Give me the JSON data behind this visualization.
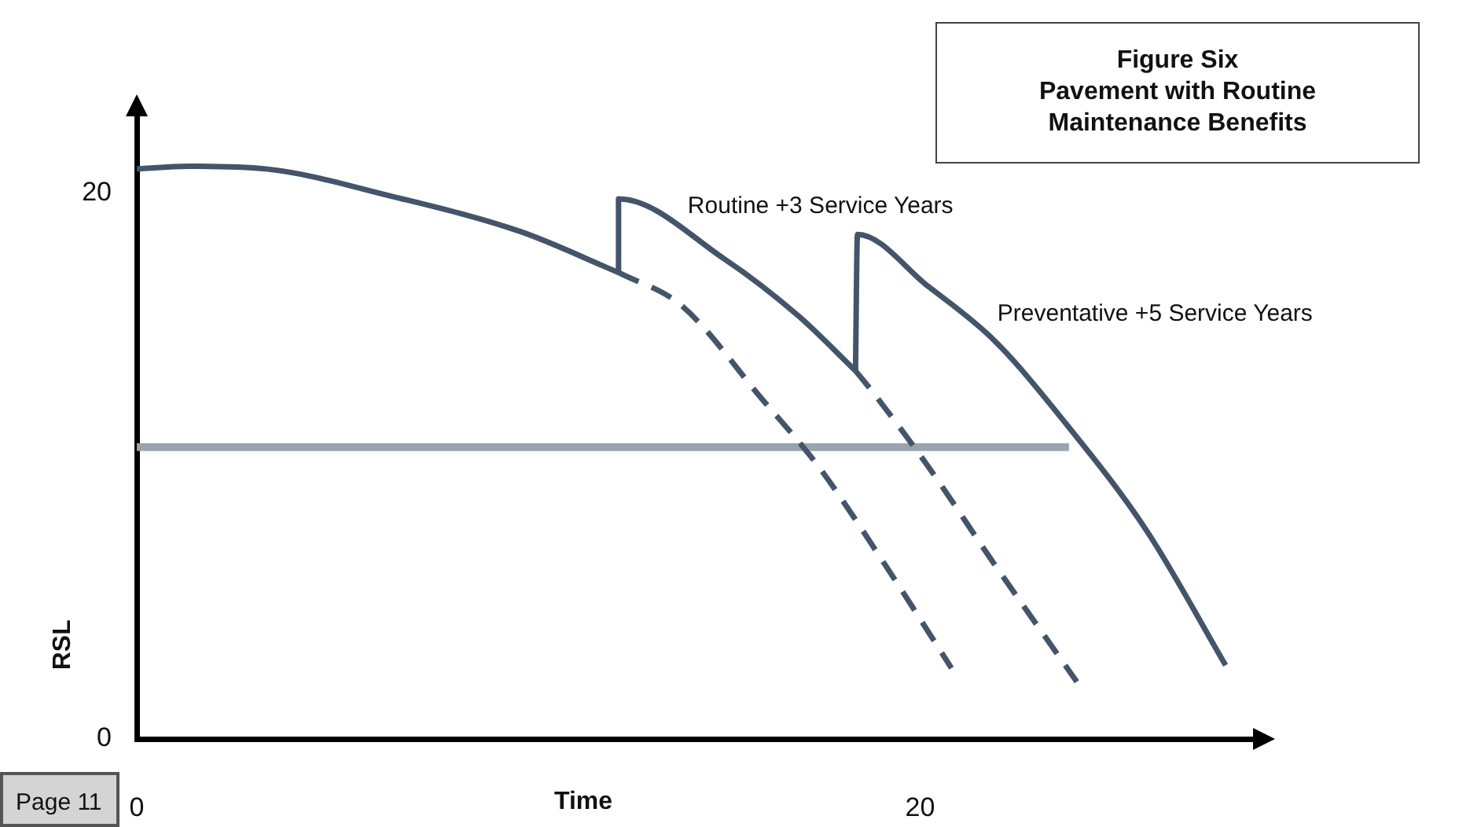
{
  "chart_data": {
    "type": "line",
    "title": "Figure Six",
    "subtitle": "Pavement with Routine Maintenance Benefits",
    "xlabel": "Time",
    "ylabel": "RSL",
    "xlim": [
      0,
      28.5
    ],
    "xticks": [
      0,
      20
    ],
    "ylim": [
      0,
      23
    ],
    "yticks": [
      0,
      20
    ],
    "grid": false,
    "legend": false,
    "marker": "none",
    "series": [
      {
        "color": "#44546a",
        "line_style": "solid",
        "x": [
          0,
          1.3,
          3.3,
          6.5,
          9.8,
          12.3
        ],
        "values": [
          20.9,
          21.0,
          20.9,
          19.9,
          18.6,
          17.1
        ]
      },
      {
        "name": "Routine +3 Service Years",
        "color": "#44546a",
        "line_style": "solid",
        "x": [
          12.3,
          12.3,
          15.0,
          16.9,
          18.35
        ],
        "values": [
          17.1,
          19.8,
          17.6,
          15.5,
          13.5
        ]
      },
      {
        "name": "Preventative +5 Service Years",
        "color": "#44546a",
        "line_style": "solid",
        "x": [
          18.35,
          18.4,
          20.2,
          21.9,
          23.7,
          25.8,
          27.8
        ],
        "values": [
          13.5,
          18.5,
          16.6,
          14.6,
          11.6,
          7.6,
          2.7
        ]
      },
      {
        "color": "#44546a",
        "line_style": "dashed",
        "x": [
          12.3,
          13.9,
          16.0,
          17.4,
          19.1,
          20.8
        ],
        "values": [
          17.1,
          15.9,
          12.4,
          10.0,
          6.4,
          2.6
        ]
      },
      {
        "color": "#44546a",
        "line_style": "dashed",
        "x": [
          18.35,
          18.8,
          20.2,
          21.9,
          24.0
        ],
        "values": [
          13.5,
          12.7,
          10.0,
          6.4,
          2.1
        ]
      },
      {
        "color": "#9aa3ae",
        "line_style": "solid",
        "x": [
          0,
          23.8
        ],
        "values": [
          10.7,
          10.7
        ]
      }
    ],
    "annotations": [
      "Page 11"
    ]
  }
}
